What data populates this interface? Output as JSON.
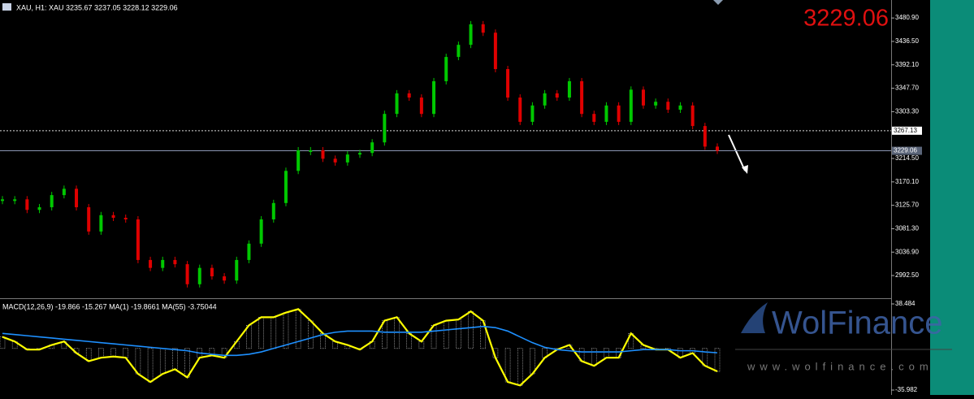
{
  "chart_data": [
    {
      "type": "price_bars",
      "title": "XAU, H1:  XAU  3235.67 3237.05 3228.12 3229.06",
      "price_label": "3229.06",
      "up_color": "#00c800",
      "down_color": "#e00000",
      "values": [
        3137,
        3137,
        3117,
        3122,
        3145,
        3157,
        3122,
        3076,
        3107,
        3102,
        3099,
        3022,
        3007,
        3022,
        3014,
        2976,
        3007,
        2991,
        2983,
        3022,
        3053,
        3099,
        3130,
        3191,
        3230,
        3230,
        3214,
        3207,
        3222,
        3225,
        3245,
        3299,
        3338,
        3330,
        3299,
        3361,
        3407,
        3430,
        3469,
        3453,
        3384,
        3330,
        3284,
        3315,
        3338,
        3330,
        3361,
        3299,
        3284,
        3315,
        3284,
        3345,
        3315,
        3322,
        3307,
        3315,
        3276,
        3237,
        3229.06
      ],
      "ylim": [
        2951,
        3515
      ],
      "yticks": [
        {
          "value": 3480.9,
          "label": "3480.90"
        },
        {
          "value": 3436.5,
          "label": "3436.50"
        },
        {
          "value": 3392.1,
          "label": "3392.10"
        },
        {
          "value": 3347.7,
          "label": "3347.70"
        },
        {
          "value": 3303.3,
          "label": "3303.30"
        },
        {
          "value": 3214.5,
          "label": "3214.50"
        },
        {
          "value": 3170.1,
          "label": "3170.10"
        },
        {
          "value": 3125.7,
          "label": "3125.70"
        },
        {
          "value": 3081.3,
          "label": "3081.30"
        },
        {
          "value": 3036.9,
          "label": "3036.90"
        },
        {
          "value": 2992.5,
          "label": "2992.50"
        }
      ],
      "levels": [
        3267.13,
        3229.06
      ]
    },
    {
      "type": "macd",
      "title": "MACD(12,26,9) -19.866 -15.267 MA(1) -19.8661 MA(55) -3.75044",
      "histogram_color": "#d8d8d8",
      "series": [
        {
          "color": "#ffff00",
          "values": [
            10,
            6,
            -1,
            -1,
            3,
            6,
            -4,
            -11,
            -8,
            -7,
            -8,
            -22,
            -29,
            -22,
            -18,
            -25,
            -8,
            -6,
            -8,
            6,
            20,
            27,
            27,
            31,
            34,
            24,
            13,
            6,
            3,
            -1,
            6,
            24,
            27,
            13,
            6,
            20,
            24,
            25,
            32,
            24,
            -8,
            -29,
            -32,
            -22,
            -8,
            -1,
            3,
            -11,
            -15,
            -8,
            -8,
            13,
            3,
            -1,
            -1,
            -8,
            -4,
            -15,
            -19.866
          ]
        },
        {
          "color": "#1e90ff",
          "values": [
            13,
            12,
            11,
            10,
            9,
            8,
            7,
            6,
            5,
            4,
            3,
            2,
            1,
            0,
            -1,
            -2,
            -4,
            -5,
            -6,
            -6,
            -5,
            -3,
            0,
            3,
            6,
            9,
            12,
            14,
            15,
            15,
            15,
            14,
            14,
            14,
            14,
            15,
            16,
            17,
            18,
            19,
            18,
            15,
            10,
            5,
            1,
            -1,
            -2,
            -3,
            -3,
            -3,
            -3,
            -2,
            -1,
            -1,
            -1,
            -2,
            -2,
            -3,
            -3.75044
          ]
        }
      ],
      "ylim": [
        -40.2,
        41.3
      ],
      "yticks": [
        38.484,
        -35.982
      ]
    }
  ],
  "watermark": {
    "brand": "WolFinance",
    "url": "www.wolfinance.com"
  }
}
